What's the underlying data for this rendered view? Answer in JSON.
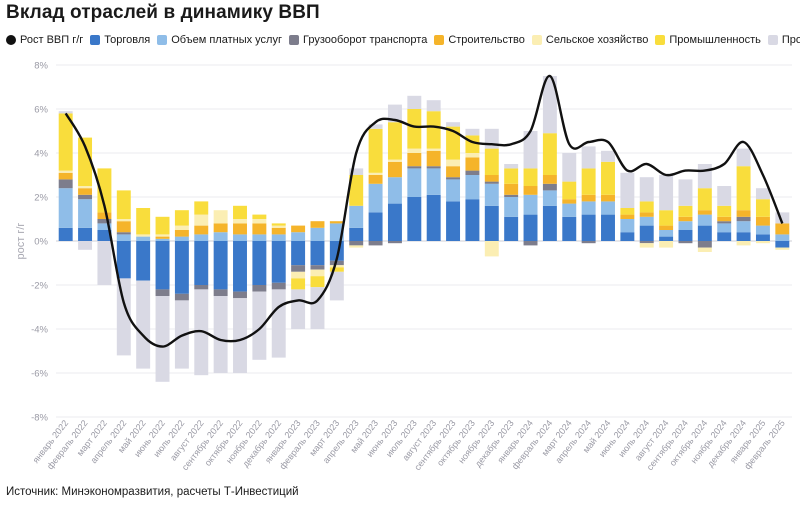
{
  "title": "Вклад отраслей в динамику ВВП",
  "source": "Источник: Минэкономразвития, расчеты Т-Инвестиций",
  "legend": [
    {
      "label": "Рост ВВП г/г",
      "color": "#111111"
    },
    {
      "label": "Торговля",
      "color": "#3a78c9"
    },
    {
      "label": "Объем платных услуг",
      "color": "#8fbde8"
    },
    {
      "label": "Грузооборот транспорта",
      "color": "#7d7d8c"
    },
    {
      "label": "Строительство",
      "color": "#f5b42a"
    },
    {
      "label": "Сельское хозяйство",
      "color": "#fbeeb3"
    },
    {
      "label": "Промышленность",
      "color": "#f9dd3c"
    },
    {
      "label": "Прочие",
      "color": "#d9d9e4"
    }
  ],
  "chart_data": {
    "type": "bar",
    "stacked": true,
    "ylabel": "рост г/г",
    "ylim": [
      -8,
      8
    ],
    "yticks": [
      "8%",
      "6%",
      "4%",
      "2%",
      "0%",
      "-2%",
      "-4%",
      "-6%",
      "-8%"
    ],
    "grid": true,
    "legend_position": "top",
    "categories": [
      "январь 2022",
      "февраль 2022",
      "март 2022",
      "апрель 2022",
      "май 2022",
      "июнь 2022",
      "июль 2022",
      "август 2022",
      "сентябрь 2022",
      "октябрь 2022",
      "ноябрь 2022",
      "декабрь 2022",
      "январь 2023",
      "февраль 2023",
      "март 2023",
      "апрель 2023",
      "май 2023",
      "июнь 2023",
      "июль 2023",
      "август 2023",
      "сентябрь 2023",
      "октябрь 2023",
      "ноябрь 2023",
      "декабрь 2023",
      "январь 2024",
      "февраль 2024",
      "март 2024",
      "апрель 2024",
      "май 2024",
      "июнь 2024",
      "июль 2024",
      "август 2024",
      "сентябрь 2024",
      "октябрь 2024",
      "ноябрь 2024",
      "декабрь 2024",
      "январь 2025",
      "февраль 2025"
    ],
    "series": [
      {
        "name": "Торговля",
        "color": "#3a78c9",
        "values": [
          0.6,
          0.6,
          0.5,
          -1.7,
          -1.8,
          -2.2,
          -2.4,
          -2.0,
          -2.2,
          -2.3,
          -2.0,
          -1.9,
          -1.1,
          -1.1,
          -0.9,
          0.6,
          1.3,
          1.7,
          2.0,
          2.1,
          1.8,
          1.9,
          1.6,
          1.1,
          1.2,
          1.6,
          1.1,
          1.2,
          1.2,
          0.4,
          0.7,
          0.2,
          0.5,
          0.7,
          0.4,
          0.4,
          0.3,
          -0.3
        ]
      },
      {
        "name": "Объем платных услуг",
        "color": "#8fbde8",
        "values": [
          1.8,
          1.3,
          0.3,
          0.3,
          0.2,
          0.1,
          0.2,
          0.3,
          0.4,
          0.3,
          0.3,
          0.3,
          0.4,
          0.6,
          0.8,
          1.0,
          1.3,
          1.2,
          1.3,
          1.2,
          1.0,
          1.1,
          1.0,
          0.9,
          0.9,
          0.7,
          0.6,
          0.6,
          0.6,
          0.6,
          0.4,
          0.3,
          0.4,
          0.5,
          0.4,
          0.5,
          0.4,
          0.3
        ]
      },
      {
        "name": "Грузооборот транспорта",
        "color": "#7d7d8c",
        "values": [
          0.4,
          0.2,
          0.2,
          0.1,
          0.0,
          -0.3,
          -0.3,
          -0.2,
          -0.3,
          -0.3,
          -0.3,
          -0.3,
          -0.3,
          -0.2,
          -0.2,
          -0.2,
          -0.2,
          -0.1,
          0.1,
          0.1,
          0.1,
          0.2,
          0.1,
          0.1,
          -0.2,
          0.3,
          0.0,
          -0.1,
          0.0,
          0.0,
          -0.1,
          0.0,
          -0.1,
          -0.3,
          0.1,
          0.2,
          0.0,
          0.0
        ]
      },
      {
        "name": "Строительство",
        "color": "#f5b42a",
        "values": [
          0.3,
          0.3,
          0.3,
          0.5,
          0.0,
          0.1,
          0.3,
          0.4,
          0.4,
          0.5,
          0.5,
          0.3,
          0.3,
          0.3,
          0.1,
          0.0,
          0.4,
          0.7,
          0.6,
          0.7,
          0.5,
          0.6,
          0.3,
          0.5,
          0.4,
          0.4,
          0.2,
          0.3,
          0.3,
          0.2,
          0.2,
          0.2,
          0.2,
          0.2,
          0.2,
          0.3,
          0.4,
          0.5
        ]
      },
      {
        "name": "Сельское хозяйство",
        "color": "#fbeeb3",
        "values": [
          0.1,
          0.1,
          0.0,
          0.1,
          0.1,
          0.1,
          0.2,
          0.5,
          0.6,
          0.2,
          0.2,
          0.1,
          -0.3,
          -0.3,
          -0.1,
          -0.1,
          0.1,
          0.1,
          0.2,
          0.1,
          0.3,
          0.2,
          -0.7,
          0.0,
          0.0,
          0.0,
          0.0,
          0.0,
          0.0,
          0.0,
          -0.2,
          -0.3,
          0.0,
          -0.2,
          0.0,
          -0.2,
          -0.1,
          -0.1
        ]
      },
      {
        "name": "Промышленность",
        "color": "#f9dd3c",
        "values": [
          2.6,
          2.2,
          2.0,
          1.3,
          1.2,
          0.8,
          0.7,
          0.6,
          0.0,
          0.6,
          0.2,
          0.1,
          -0.5,
          -0.5,
          -0.2,
          1.4,
          2.0,
          1.7,
          1.8,
          1.7,
          1.5,
          0.8,
          1.2,
          0.7,
          0.8,
          1.9,
          0.8,
          1.2,
          1.5,
          0.3,
          0.5,
          0.7,
          0.5,
          1.0,
          0.5,
          2.0,
          0.8,
          0.0
        ]
      },
      {
        "name": "Прочие",
        "color": "#d9d9e4",
        "values": [
          0.1,
          -0.4,
          -2.0,
          -3.5,
          -4.0,
          -3.9,
          -3.1,
          -3.9,
          -3.5,
          -3.4,
          -3.1,
          -3.1,
          -1.8,
          -1.9,
          -1.3,
          0.3,
          0.2,
          0.8,
          0.6,
          0.5,
          0.2,
          0.3,
          0.9,
          0.2,
          1.7,
          2.6,
          1.3,
          1.0,
          0.5,
          1.6,
          1.1,
          1.6,
          1.2,
          1.1,
          0.9,
          0.8,
          0.5,
          0.5
        ]
      }
    ],
    "line": {
      "name": "Рост ВВП г/г",
      "color": "#111111",
      "values": [
        5.8,
        4.3,
        1.6,
        -2.8,
        -4.3,
        -4.8,
        -4.3,
        -4.1,
        -4.5,
        -4.5,
        -4.0,
        -3.0,
        -2.7,
        -2.7,
        -0.8,
        4.0,
        5.4,
        5.5,
        5.2,
        5.2,
        5.0,
        4.5,
        4.4,
        4.4,
        5.0,
        7.5,
        4.4,
        4.5,
        4.5,
        3.2,
        3.5,
        3.0,
        3.2,
        3.2,
        3.5,
        4.5,
        3.0,
        0.8
      ]
    }
  }
}
